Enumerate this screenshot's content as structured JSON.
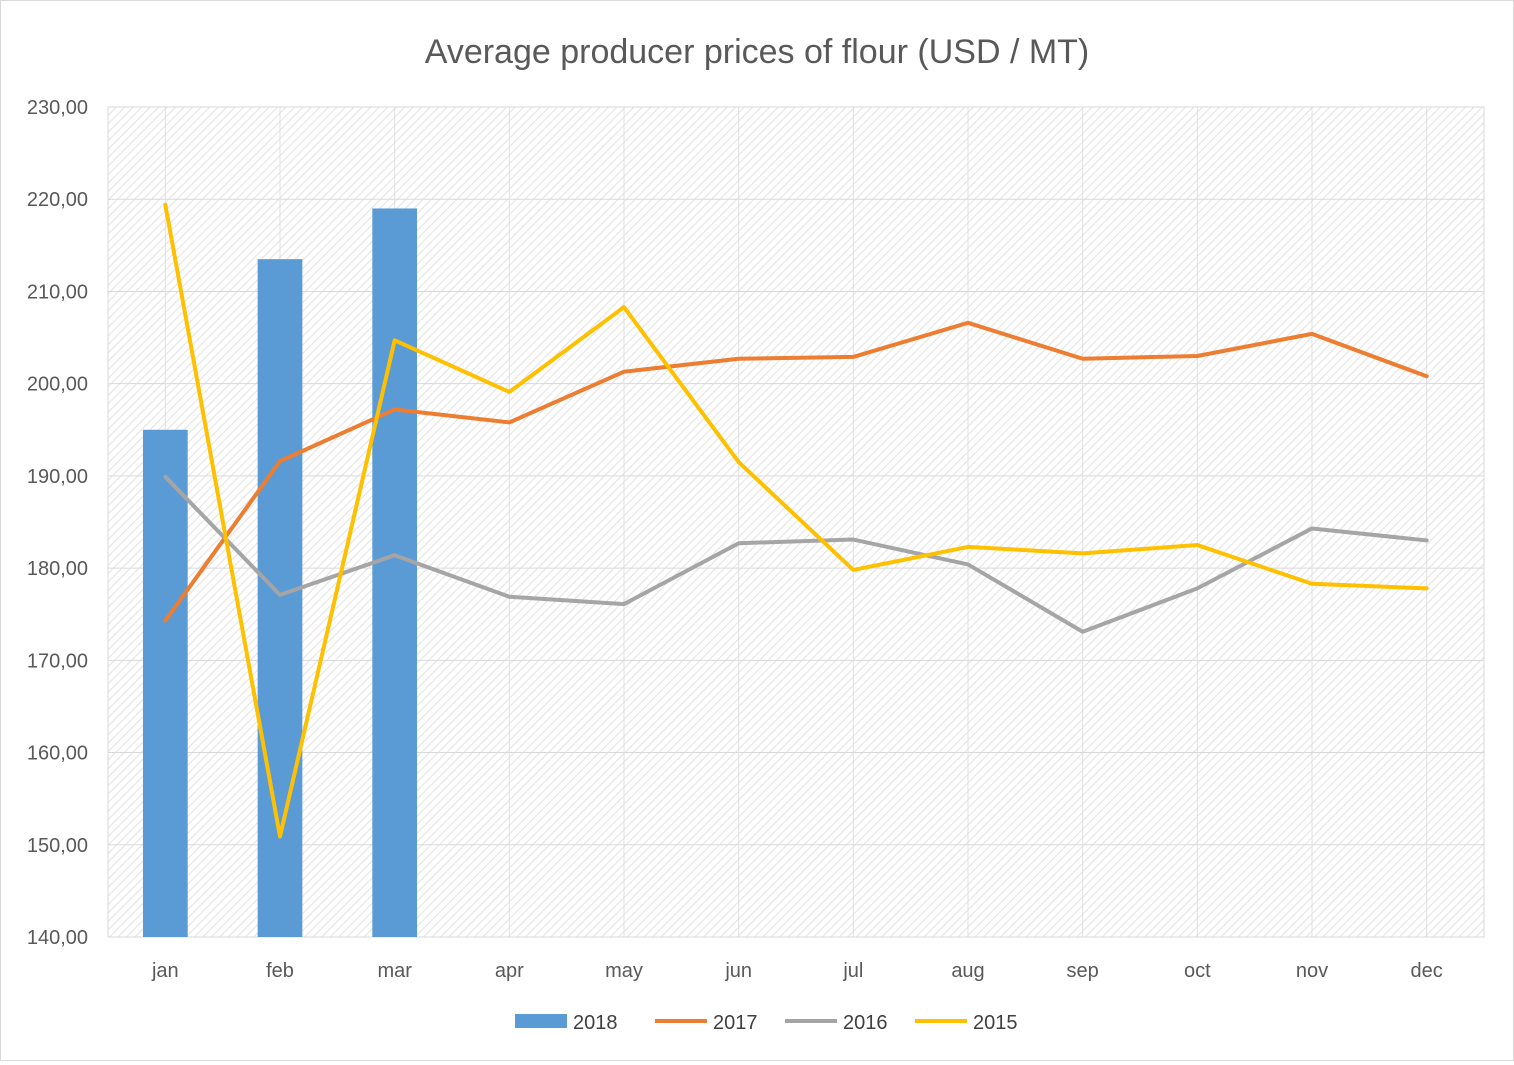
{
  "chart_data": {
    "type": "bar+line",
    "title": "Average producer prices of flour (USD / MT)",
    "xlabel": "",
    "ylabel": "",
    "categories": [
      "jan",
      "feb",
      "mar",
      "apr",
      "may",
      "jun",
      "jul",
      "aug",
      "sep",
      "oct",
      "nov",
      "dec"
    ],
    "ylim": [
      140,
      230
    ],
    "yticks": [
      140,
      150,
      160,
      170,
      180,
      190,
      200,
      210,
      220,
      230
    ],
    "ytick_labels": [
      "140,00",
      "150,00",
      "160,00",
      "170,00",
      "180,00",
      "190,00",
      "200,00",
      "210,00",
      "220,00",
      "230,00"
    ],
    "grid": true,
    "legend_position": "bottom",
    "series": [
      {
        "name": "2018",
        "kind": "bar",
        "color": "#5b9bd5",
        "values": [
          195.0,
          213.5,
          219.0,
          null,
          null,
          null,
          null,
          null,
          null,
          null,
          null,
          null
        ]
      },
      {
        "name": "2017",
        "kind": "line",
        "color": "#ed7d31",
        "values": [
          174.3,
          191.6,
          197.2,
          195.8,
          201.3,
          202.7,
          202.9,
          206.6,
          202.7,
          203.0,
          205.4,
          200.8
        ]
      },
      {
        "name": "2016",
        "kind": "line",
        "color": "#a5a5a5",
        "values": [
          189.9,
          177.1,
          181.4,
          176.9,
          176.1,
          182.7,
          183.1,
          180.4,
          173.1,
          177.8,
          184.3,
          183.0
        ]
      },
      {
        "name": "2015",
        "kind": "line",
        "color": "#ffc000",
        "values": [
          219.4,
          150.9,
          204.7,
          199.1,
          208.3,
          191.5,
          179.8,
          182.3,
          181.6,
          182.5,
          178.3,
          177.8
        ]
      }
    ]
  }
}
